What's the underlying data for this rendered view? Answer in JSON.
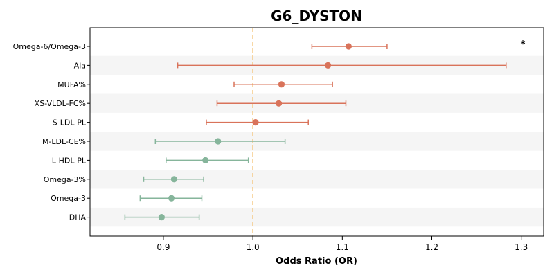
{
  "chart_data": {
    "type": "forest",
    "title": "G6_DYSTON",
    "xlabel": "Odds Ratio (OR)",
    "xlim": [
      0.818,
      1.325
    ],
    "x_ticks": [
      0.9,
      1.0,
      1.1,
      1.2,
      1.3
    ],
    "x_tick_labels": [
      "0.9",
      "1.0",
      "1.1",
      "1.2",
      "1.3"
    ],
    "reference_line": 1.0,
    "reference_line_color": "#f5c57a",
    "colors": {
      "risk": "#d9735a",
      "protective": "#86b59b",
      "band": "#f5f5f5"
    },
    "rows": [
      {
        "label": "Omega-6/Omega-3",
        "or": 1.107,
        "lower": 1.066,
        "upper": 1.15,
        "group": "risk"
      },
      {
        "label": "Ala",
        "or": 1.084,
        "lower": 0.916,
        "upper": 1.283,
        "group": "risk"
      },
      {
        "label": "MUFA%",
        "or": 1.032,
        "lower": 0.979,
        "upper": 1.089,
        "group": "risk"
      },
      {
        "label": "XS-VLDL-FC%",
        "or": 1.029,
        "lower": 0.96,
        "upper": 1.104,
        "group": "risk"
      },
      {
        "label": "S-LDL-PL",
        "or": 1.003,
        "lower": 0.948,
        "upper": 1.062,
        "group": "risk"
      },
      {
        "label": "M-LDL-CE%",
        "or": 0.961,
        "lower": 0.891,
        "upper": 1.036,
        "group": "protective"
      },
      {
        "label": "L-HDL-PL",
        "or": 0.947,
        "lower": 0.903,
        "upper": 0.995,
        "group": "protective"
      },
      {
        "label": "Omega-3%",
        "or": 0.912,
        "lower": 0.878,
        "upper": 0.945,
        "group": "protective"
      },
      {
        "label": "Omega-3",
        "or": 0.909,
        "lower": 0.874,
        "upper": 0.943,
        "group": "protective"
      },
      {
        "label": "DHA",
        "or": 0.898,
        "lower": 0.857,
        "upper": 0.94,
        "group": "protective"
      }
    ],
    "annotations": [
      {
        "row_label": "Omega-6/Omega-3",
        "text": "*"
      }
    ]
  }
}
